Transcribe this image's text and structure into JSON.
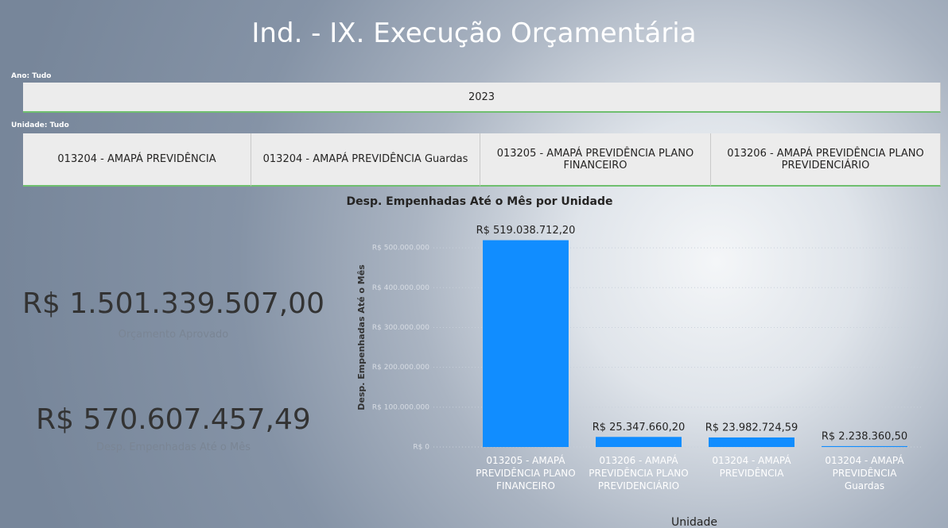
{
  "header": {
    "title": "Ind. - IX. Execução Orçamentária"
  },
  "filters": [
    {
      "label": "Ano: Tudo",
      "options": [
        "2023"
      ]
    },
    {
      "label": "Unidade: Tudo",
      "options": [
        "013204 - AMAPÁ PREVIDÊNCIA",
        "013204 - AMAPÁ PREVIDÊNCIA Guardas",
        "013205 - AMAPÁ PREVIDÊNCIA PLANO FINANCEIRO",
        "013206 - AMAPÁ PREVIDÊNCIA PLANO PREVIDENCIÁRIO"
      ]
    }
  ],
  "cards": [
    {
      "value": "R$ 1.501.339.507,00",
      "label": "Orçamento Aprovado"
    },
    {
      "value": "R$ 570.607.457,49",
      "label": "Desp. Empenhadas Até o Mês"
    }
  ],
  "chart_data": {
    "type": "bar",
    "title": "Desp. Empenhadas Até o Mês por Unidade",
    "x_label": "Unidade",
    "y_label": "Desp. Empenhadas Até o Mês",
    "categories": [
      "013205 - AMAPÁ PREVIDÊNCIA PLANO FINANCEIRO",
      "013206 - AMAPÁ PREVIDÊNCIA PLANO PREVIDENCIÁRIO",
      "013204 - AMAPÁ PREVIDÊNCIA",
      "013204 - AMAPÁ PREVIDÊNCIA Guardas"
    ],
    "values": [
      519038712.2,
      25347660.2,
      23982724.59,
      2238360.5
    ],
    "value_labels": [
      "R$ 519.038.712,20",
      "R$ 25.347.660,20",
      "R$ 23.982.724,59",
      "R$ 2.238.360,50"
    ],
    "color": "#118dff",
    "ylim": [
      0,
      550000000
    ],
    "yticks": [
      {
        "value": 0,
        "label": "R$ 0"
      },
      {
        "value": 100000000,
        "label": "R$ 100.000.000"
      },
      {
        "value": 200000000,
        "label": "R$ 200.000.000"
      },
      {
        "value": 300000000,
        "label": "R$ 300.000.000"
      },
      {
        "value": 400000000,
        "label": "R$ 400.000.000"
      },
      {
        "value": 500000000,
        "label": "R$ 500.000.000"
      }
    ],
    "grid": true
  }
}
